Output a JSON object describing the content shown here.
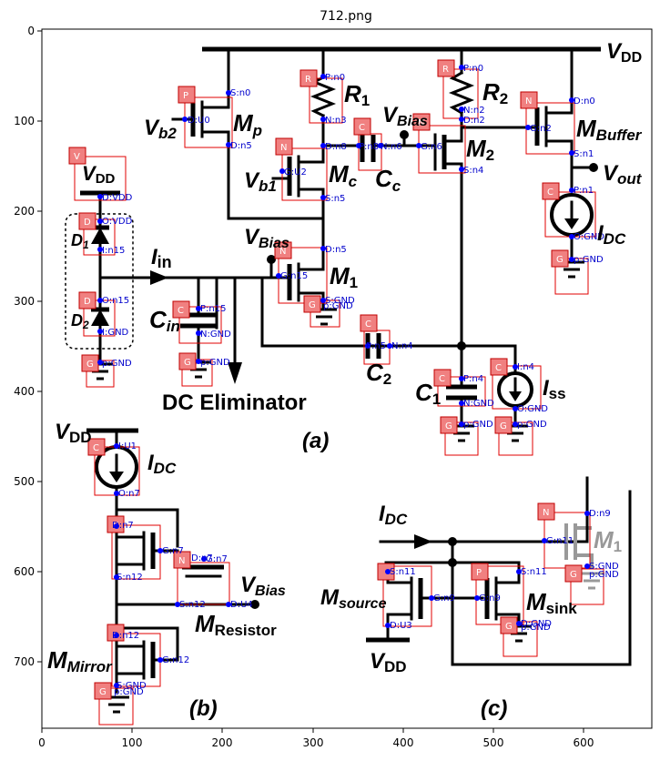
{
  "title": "712.png",
  "axes": {
    "x_ticks": [
      "0",
      "100",
      "200",
      "300",
      "400",
      "500",
      "600"
    ],
    "y_ticks": [
      "0",
      "100",
      "200",
      "300",
      "400",
      "500",
      "600",
      "700"
    ]
  },
  "labels": {
    "vdd_top": "V",
    "vdd_top_sub": "DD",
    "vb2": "V",
    "vb2_sub": "b2",
    "mp": "M",
    "mp_sub": "p",
    "r1": "R",
    "r1_sub": "1",
    "vbias_a": "V",
    "vbias_a_sub": "Bias",
    "r2": "R",
    "r2_sub": "2",
    "mbuffer": "M",
    "mbuffer_sub": "Buffer",
    "vb1": "V",
    "vb1_sub": "b1",
    "mc": "M",
    "mc_sub": "c",
    "cc": "C",
    "cc_sub": "c",
    "m2": "M",
    "m2_sub": "2",
    "vout": "V",
    "vout_sub": "out",
    "vdd_d": "V",
    "vdd_d_sub": "DD",
    "d1": "D",
    "d1_sub": "1",
    "d2": "D",
    "d2_sub": "2",
    "iin": "I",
    "iin_sub": "in",
    "vbias_mid": "V",
    "vbias_mid_sub": "Bias",
    "idc_a": "I",
    "idc_a_sub": "DC",
    "m1": "M",
    "m1_sub": "1",
    "cin": "C",
    "cin_sub": "in",
    "c2": "C",
    "c2_sub": "2",
    "c1": "C",
    "c1_sub": "1",
    "iss": "I",
    "iss_sub": "ss",
    "dc_elim": "DC Eliminator",
    "fig_a": "(a)",
    "vdd_b": "V",
    "vdd_b_sub": "DD",
    "idc_b": "I",
    "idc_b_sub": "DC",
    "vbias_b": "V",
    "vbias_b_sub": "Bias",
    "mres": "M",
    "mres_sub": "Resistor",
    "mmirror": "M",
    "mmirror_sub": "Mirror",
    "fig_b": "(b)",
    "idc_c": "I",
    "idc_c_sub": "DC",
    "m1_c": "M",
    "m1_c_sub": "1",
    "msource": "M",
    "msource_sub": "source",
    "msink": "M",
    "msink_sub": "sink",
    "vdd_c": "V",
    "vdd_c_sub": "DD",
    "fig_c": "(c)"
  },
  "tags": [
    "P",
    "R",
    "R",
    "N",
    "N",
    "C",
    "N",
    "C",
    "V",
    "D",
    "D",
    "G",
    "C",
    "G",
    "N",
    "G",
    "C",
    "C",
    "G",
    "C",
    "G",
    "C",
    "N",
    "G",
    "N",
    "G",
    "N",
    "P",
    "G",
    "G"
  ],
  "annotations": [
    "S:n0",
    "D:U0",
    "D:n5",
    "P:n0",
    "N:n3",
    "P:n0",
    "N:n2",
    "D:n0",
    "G:n2",
    "S:n1",
    "D:n8",
    "G:U2",
    "S:n5",
    "P:n8",
    "N:n6",
    "G:n6",
    "S:n4",
    "D:n2",
    "D:VDD",
    "O:VDD",
    "I:n15",
    "O:n15",
    "I:GND",
    "p:GND",
    "D:n5",
    "G:n15",
    "S:GND",
    "p:GND",
    "P:n15",
    "N:GND",
    "p:GND",
    "P:n5",
    "N:n4",
    "P:n4",
    "N:GND",
    "p:GND",
    "I:n4",
    "O:GND",
    "p:GND",
    "P:n1",
    "O:GND",
    "p:GND",
    "I:U1",
    "O:n7",
    "D:n7",
    "G:n7",
    "S:n12",
    "D:n12",
    "G:n12",
    "S:GND",
    "p:GND",
    "D:n7",
    "G:n7",
    "S:n12",
    "D:U4",
    "D:n9",
    "G:n11",
    "S:GND",
    "p:GND",
    "S:n11",
    "G:n9",
    "D:U3",
    "S:n11",
    "G:n9",
    "D:GND",
    "p:GND"
  ]
}
